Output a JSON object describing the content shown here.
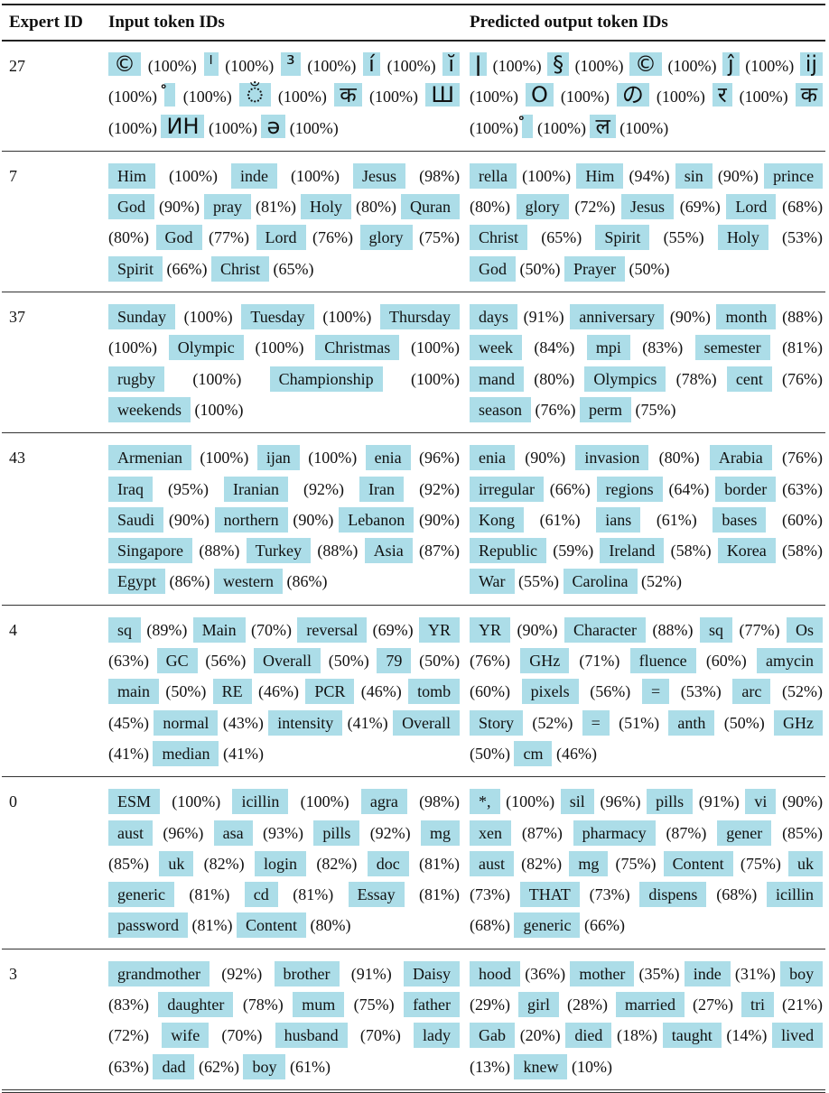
{
  "header": {
    "col_expert": "Expert ID",
    "col_input": "Input token IDs",
    "col_output": "Predicted output token IDs"
  },
  "rows": [
    {
      "id": "27",
      "input": [
        [
          "©",
          "(100%)"
        ],
        [
          "ˡ",
          "(100%)"
        ],
        [
          "³",
          "(100%)"
        ],
        [
          "í",
          "(100%)"
        ],
        [
          "ĭ",
          "(100%)"
        ],
        [
          "ᩴ",
          "(100%)"
        ],
        [
          "ঁ",
          "(100%)"
        ],
        [
          "क",
          "(100%)"
        ],
        [
          "Ш",
          "(100%)"
        ],
        [
          "ИН",
          "(100%)"
        ],
        [
          "ə",
          "(100%)"
        ]
      ],
      "output": [
        [
          "ǀ",
          "(100%)"
        ],
        [
          "§",
          "(100%)"
        ],
        [
          "©",
          "(100%)"
        ],
        [
          "ĵ",
          "(100%)"
        ],
        [
          "ij",
          "(100%)"
        ],
        [
          "O",
          "(100%)"
        ],
        [
          "の",
          "(100%)"
        ],
        [
          "र",
          "(100%)"
        ],
        [
          "क",
          "(100%)"
        ],
        [
          "ᩴ",
          "(100%)"
        ],
        [
          "ल",
          "(100%)"
        ]
      ]
    },
    {
      "id": "7",
      "input": [
        [
          "Him",
          "(100%)"
        ],
        [
          "inde",
          "(100%)"
        ],
        [
          "Jesus",
          "(98%)"
        ],
        [
          "God",
          "(90%)"
        ],
        [
          "pray",
          "(81%)"
        ],
        [
          "Holy",
          "(80%)"
        ],
        [
          "Quran",
          "(80%)"
        ],
        [
          "God",
          "(77%)"
        ],
        [
          "Lord",
          "(76%)"
        ],
        [
          "glory",
          "(75%)"
        ],
        [
          "Spirit",
          "(66%)"
        ],
        [
          "Christ",
          "(65%)"
        ]
      ],
      "output": [
        [
          "rella",
          "(100%)"
        ],
        [
          "Him",
          "(94%)"
        ],
        [
          "sin",
          "(90%)"
        ],
        [
          "prince",
          "(80%)"
        ],
        [
          "glory",
          "(72%)"
        ],
        [
          "Jesus",
          "(69%)"
        ],
        [
          "Lord",
          "(68%)"
        ],
        [
          "Christ",
          "(65%)"
        ],
        [
          "Spirit",
          "(55%)"
        ],
        [
          "Holy",
          "(53%)"
        ],
        [
          "God",
          "(50%)"
        ],
        [
          "Prayer",
          "(50%)"
        ]
      ]
    },
    {
      "id": "37",
      "input": [
        [
          "Sunday",
          "(100%)"
        ],
        [
          "Tuesday",
          "(100%)"
        ],
        [
          "Thursday",
          "(100%)"
        ],
        [
          "Olympic",
          "(100%)"
        ],
        [
          "Christmas",
          "(100%)"
        ],
        [
          "rugby",
          "(100%)"
        ],
        [
          "Championship",
          "(100%)"
        ],
        [
          "weekends",
          "(100%)"
        ]
      ],
      "output": [
        [
          "days",
          "(91%)"
        ],
        [
          "anniversary",
          "(90%)"
        ],
        [
          "month",
          "(88%)"
        ],
        [
          "week",
          "(84%)"
        ],
        [
          "mpi",
          "(83%)"
        ],
        [
          "semester",
          "(81%)"
        ],
        [
          "mand",
          "(80%)"
        ],
        [
          "Olympics",
          "(78%)"
        ],
        [
          "cent",
          "(76%)"
        ],
        [
          "season",
          "(76%)"
        ],
        [
          "perm",
          "(75%)"
        ]
      ]
    },
    {
      "id": "43",
      "input": [
        [
          "Armenian",
          "(100%)"
        ],
        [
          "ijan",
          "(100%)"
        ],
        [
          "enia",
          "(96%)"
        ],
        [
          "Iraq",
          "(95%)"
        ],
        [
          "Iranian",
          "(92%)"
        ],
        [
          "Iran",
          "(92%)"
        ],
        [
          "Saudi",
          "(90%)"
        ],
        [
          "northern",
          "(90%)"
        ],
        [
          "Lebanon",
          "(90%)"
        ],
        [
          "Singapore",
          "(88%)"
        ],
        [
          "Turkey",
          "(88%)"
        ],
        [
          "Asia",
          "(87%)"
        ],
        [
          "Egypt",
          "(86%)"
        ],
        [
          "western",
          "(86%)"
        ]
      ],
      "output": [
        [
          "enia",
          "(90%)"
        ],
        [
          "invasion",
          "(80%)"
        ],
        [
          "Arabia",
          "(76%)"
        ],
        [
          "irregular",
          "(66%)"
        ],
        [
          "regions",
          "(64%)"
        ],
        [
          "border",
          "(63%)"
        ],
        [
          "Kong",
          "(61%)"
        ],
        [
          "ians",
          "(61%)"
        ],
        [
          "bases",
          "(60%)"
        ],
        [
          "Republic",
          "(59%)"
        ],
        [
          "Ireland",
          "(58%)"
        ],
        [
          "Korea",
          "(58%)"
        ],
        [
          "War",
          "(55%)"
        ],
        [
          "Carolina",
          "(52%)"
        ]
      ]
    },
    {
      "id": "4",
      "input": [
        [
          "sq",
          "(89%)"
        ],
        [
          "Main",
          "(70%)"
        ],
        [
          "reversal",
          "(69%)"
        ],
        [
          "YR",
          "(63%)"
        ],
        [
          "GC",
          "(56%)"
        ],
        [
          "Overall",
          "(50%)"
        ],
        [
          "79",
          "(50%)"
        ],
        [
          "main",
          "(50%)"
        ],
        [
          "RE",
          "(46%)"
        ],
        [
          "PCR",
          "(46%)"
        ],
        [
          "tomb",
          "(45%)"
        ],
        [
          "normal",
          "(43%)"
        ],
        [
          "intensity",
          "(41%)"
        ],
        [
          "Overall",
          "(41%)"
        ],
        [
          "median",
          "(41%)"
        ]
      ],
      "output": [
        [
          "YR",
          "(90%)"
        ],
        [
          "Character",
          "(88%)"
        ],
        [
          "sq",
          "(77%)"
        ],
        [
          "Os",
          "(76%)"
        ],
        [
          "GHz",
          "(71%)"
        ],
        [
          "fluence",
          "(60%)"
        ],
        [
          "amycin",
          "(60%)"
        ],
        [
          "pixels",
          "(56%)"
        ],
        [
          "=",
          "(53%)"
        ],
        [
          "arc",
          "(52%)"
        ],
        [
          "Story",
          "(52%)"
        ],
        [
          "=",
          "(51%)"
        ],
        [
          "anth",
          "(50%)"
        ],
        [
          "GHz",
          "(50%)"
        ],
        [
          "cm",
          "(46%)"
        ]
      ]
    },
    {
      "id": "0",
      "input": [
        [
          "ESM",
          "(100%)"
        ],
        [
          "icillin",
          "(100%)"
        ],
        [
          "agra",
          "(98%)"
        ],
        [
          "aust",
          "(96%)"
        ],
        [
          "asa",
          "(93%)"
        ],
        [
          "pills",
          "(92%)"
        ],
        [
          "mg",
          "(85%)"
        ],
        [
          "uk",
          "(82%)"
        ],
        [
          "login",
          "(82%)"
        ],
        [
          "doc",
          "(81%)"
        ],
        [
          "generic",
          "(81%)"
        ],
        [
          "cd",
          "(81%)"
        ],
        [
          "Essay",
          "(81%)"
        ],
        [
          "password",
          "(81%)"
        ],
        [
          "Content",
          "(80%)"
        ]
      ],
      "output": [
        [
          "*,",
          "(100%)"
        ],
        [
          "sil",
          "(96%)"
        ],
        [
          "pills",
          "(91%)"
        ],
        [
          "vi",
          "(90%)"
        ],
        [
          "xen",
          "(87%)"
        ],
        [
          "pharmacy",
          "(87%)"
        ],
        [
          "gener",
          "(85%)"
        ],
        [
          "aust",
          "(82%)"
        ],
        [
          "mg",
          "(75%)"
        ],
        [
          "Content",
          "(75%)"
        ],
        [
          "uk",
          "(73%)"
        ],
        [
          "THAT",
          "(73%)"
        ],
        [
          "dispens",
          "(68%)"
        ],
        [
          "icillin",
          "(68%)"
        ],
        [
          "generic",
          "(66%)"
        ]
      ]
    },
    {
      "id": "3",
      "input": [
        [
          "grandmother",
          "(92%)"
        ],
        [
          "brother",
          "(91%)"
        ],
        [
          "Daisy",
          "(83%)"
        ],
        [
          "daughter",
          "(78%)"
        ],
        [
          "mum",
          "(75%)"
        ],
        [
          "father",
          "(72%)"
        ],
        [
          "wife",
          "(70%)"
        ],
        [
          "husband",
          "(70%)"
        ],
        [
          "lady",
          "(63%)"
        ],
        [
          "dad",
          "(62%)"
        ],
        [
          "boy",
          "(61%)"
        ]
      ],
      "output": [
        [
          "hood",
          "(36%)"
        ],
        [
          "mother",
          "(35%)"
        ],
        [
          "inde",
          "(31%)"
        ],
        [
          "boy",
          "(29%)"
        ],
        [
          "girl",
          "(28%)"
        ],
        [
          "married",
          "(27%)"
        ],
        [
          "tri",
          "(21%)"
        ],
        [
          "Gab",
          "(20%)"
        ],
        [
          "died",
          "(18%)"
        ],
        [
          "taught",
          "(14%)"
        ],
        [
          "lived",
          "(13%)"
        ],
        [
          "knew",
          "(10%)"
        ]
      ]
    }
  ],
  "colors": {
    "token_highlight": "#acdde8",
    "rule": "#222222"
  }
}
